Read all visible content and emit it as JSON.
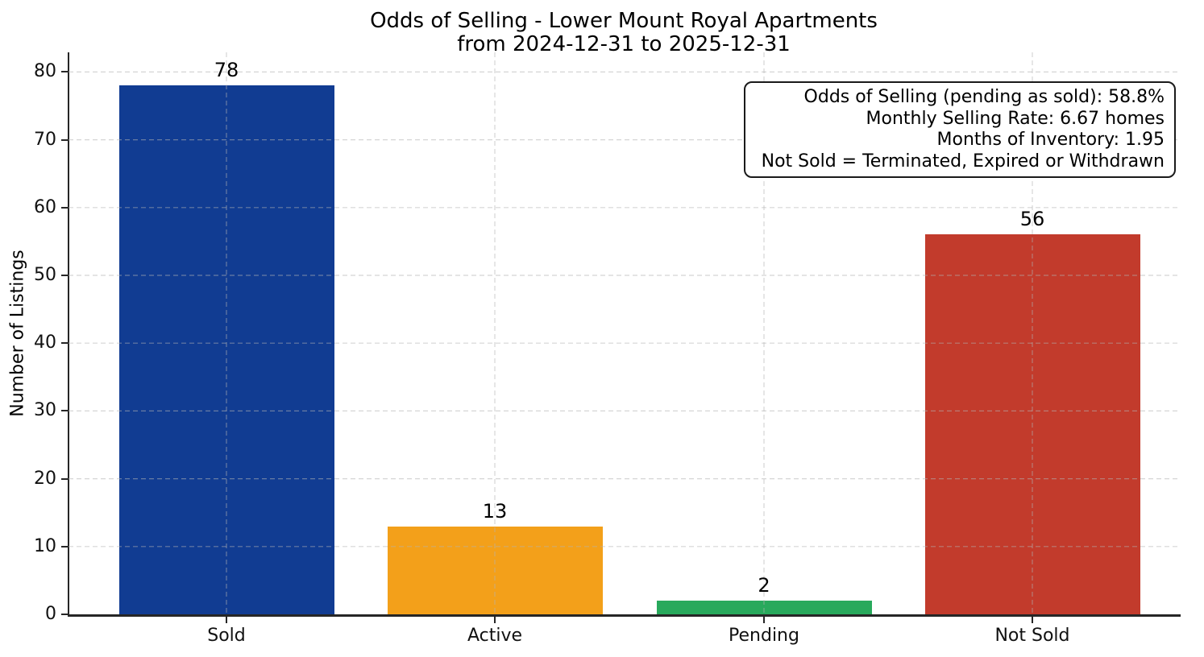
{
  "chart_data": {
    "type": "bar",
    "title": "Odds of Selling - Lower Mount Royal Apartments\nfrom 2024-12-31 to 2025-12-31",
    "title_lines": [
      "Odds of Selling - Lower Mount Royal Apartments",
      "from 2024-12-31 to 2025-12-31"
    ],
    "categories": [
      "Sold",
      "Active",
      "Pending",
      "Not Sold"
    ],
    "values": [
      78,
      13,
      2,
      56
    ],
    "bar_colors": [
      "#113c92",
      "#f3a01a",
      "#28a95c",
      "#c23b2c"
    ],
    "xlabel": "",
    "ylabel": "Number of Listings",
    "ylim": [
      0,
      82.9
    ],
    "yticks": [
      0,
      10,
      20,
      30,
      40,
      50,
      60,
      70,
      80
    ],
    "grid": {
      "linestyle": "dashed",
      "which": "both",
      "drawn_above_bars": true,
      "color": "#b3b3b3"
    },
    "legend": "none",
    "annotation_lines": [
      "Odds of Selling (pending as sold): 58.8%",
      "Monthly Selling Rate: 6.67 homes",
      "Months of Inventory: 1.95",
      "Not Sold = Terminated, Expired or Withdrawn"
    ]
  }
}
